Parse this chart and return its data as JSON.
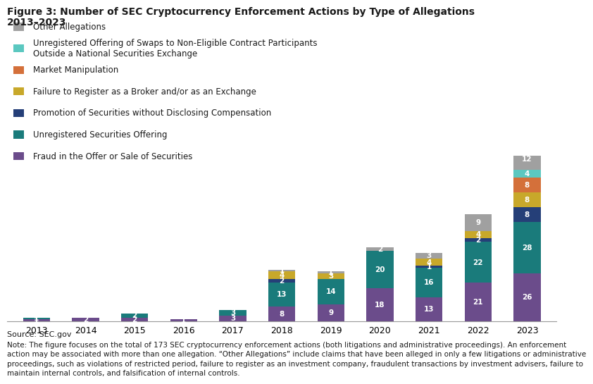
{
  "title_line1": "Figure 3: Number of SEC Cryptocurrency Enforcement Actions by Type of Allegations",
  "title_line2": "2013–2023",
  "years": [
    2013,
    2014,
    2015,
    2016,
    2017,
    2018,
    2019,
    2020,
    2021,
    2022,
    2023
  ],
  "series_order": [
    "Fraud in the Offer or Sale of Securities",
    "Unregistered Securities Offering",
    "Promotion of Securities without Disclosing Compensation",
    "Failure to Register as a Broker and/or as an Exchange",
    "Market Manipulation",
    "Unregistered Offering of Swaps to Non-Eligible Contract Participants\nOutside a National Securities Exchange",
    "Other Allegations"
  ],
  "series": {
    "Fraud in the Offer or Sale of Securities": [
      1,
      2,
      2,
      1,
      3,
      8,
      9,
      18,
      13,
      21,
      26
    ],
    "Unregistered Securities Offering": [
      1,
      0,
      2,
      0,
      3,
      13,
      14,
      20,
      16,
      22,
      28
    ],
    "Promotion of Securities without Disclosing Compensation": [
      0,
      0,
      0,
      0,
      0,
      2,
      0,
      0,
      1,
      2,
      8
    ],
    "Failure to Register as a Broker and/or as an Exchange": [
      0,
      0,
      0,
      0,
      0,
      4,
      3,
      0,
      4,
      4,
      8
    ],
    "Market Manipulation": [
      0,
      0,
      0,
      0,
      0,
      0,
      0,
      0,
      0,
      0,
      8
    ],
    "Unregistered Offering of Swaps to Non-Eligible Contract Participants\nOutside a National Securities Exchange": [
      0,
      0,
      0,
      0,
      0,
      0,
      0,
      0,
      0,
      0,
      4
    ],
    "Other Allegations": [
      0,
      0,
      0,
      0,
      0,
      1,
      1,
      2,
      3,
      9,
      12
    ]
  },
  "colors": {
    "Fraud in the Offer or Sale of Securities": "#6b4c8b",
    "Unregistered Securities Offering": "#1a7b7b",
    "Promotion of Securities without Disclosing Compensation": "#253f78",
    "Failure to Register as a Broker and/or as an Exchange": "#c8a82a",
    "Market Manipulation": "#d4703a",
    "Unregistered Offering of Swaps to Non-Eligible Contract Participants\nOutside a National Securities Exchange": "#5bc8c0",
    "Other Allegations": "#a0a0a0"
  },
  "legend_labels": {
    "Fraud in the Offer or Sale of Securities": "Fraud in the Offer or Sale of Securities",
    "Unregistered Securities Offering": "Unregistered Securities Offering",
    "Promotion of Securities without Disclosing Compensation": "Promotion of Securities without Disclosing Compensation",
    "Failure to Register as a Broker and/or as an Exchange": "Failure to Register as a Broker and/or as an Exchange",
    "Market Manipulation": "Market Manipulation",
    "Unregistered Offering of Swaps to Non-Eligible Contract Participants\nOutside a National Securities Exchange": "Unregistered Offering of Swaps to Non-Eligible Contract Participants\nOutside a National Securities Exchange",
    "Other Allegations": "Other Allegations"
  },
  "source_text": "Source: SEC.gov",
  "note_text": "Note: The figure focuses on the total of 173 SEC cryptocurrency enforcement actions (both litigations and administrative proceedings). An enforcement\naction may be associated with more than one allegation. “Other Allegations” include claims that have been alleged in only a few litigations or administrative\nproceedings, such as violations of restricted period, failure to register as an investment company, fraudulent transactions by investment advisers, failure to\nmaintain internal controls, and falsification of internal controls.",
  "ylim_max": 90,
  "bar_width": 0.55,
  "label_min_show": 1,
  "title_fontsize": 10,
  "legend_fontsize": 8.5,
  "tick_fontsize": 9,
  "source_fontsize": 8,
  "note_fontsize": 7.5
}
